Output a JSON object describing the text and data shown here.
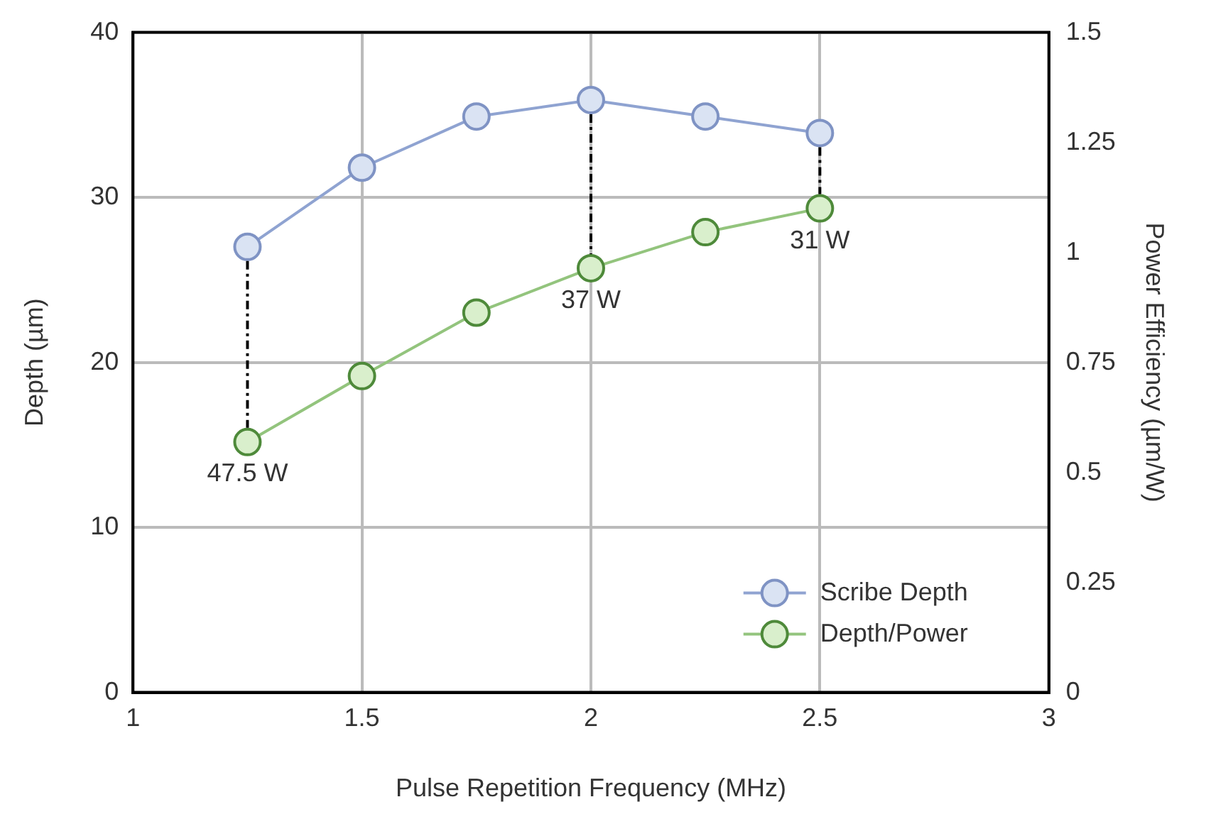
{
  "chart_data": {
    "type": "line",
    "xlabel": "Pulse Repetition Frequency (MHz)",
    "ylabel": "Depth (µm)",
    "y2label": "Power Efficiency (µm/W)",
    "xlim": [
      1,
      3
    ],
    "xticks": [
      1,
      1.5,
      2,
      2.5,
      3
    ],
    "ylim": [
      0,
      40
    ],
    "yticks": [
      0,
      10,
      20,
      30,
      40
    ],
    "y2lim": [
      0,
      1.5
    ],
    "y2ticks": [
      0,
      0.25,
      0.5,
      0.75,
      1,
      1.25,
      1.5
    ],
    "grid": true,
    "legend": "bottom right",
    "marker": "circle",
    "line_style": "solid",
    "series": [
      {
        "name": "Scribe Depth",
        "color": "#8fa3d1",
        "x": [
          1.25,
          1.5,
          1.75,
          2,
          2.25,
          2.5
        ],
        "values": [
          27,
          31.8,
          34.9,
          35.9,
          34.9,
          33.9
        ]
      },
      {
        "name": "Depth/Power",
        "color": "#93c47d",
        "axis": "y2",
        "x": [
          1.25,
          1.5,
          1.75,
          2,
          2.25,
          2.5
        ],
        "values": [
          0.569,
          0.719,
          0.863,
          0.964,
          1.046,
          1.1
        ]
      }
    ],
    "annotations": [
      {
        "text": "47.5 W",
        "x": 1.25,
        "y": 15.2
      },
      {
        "text": "37 W",
        "x": 2,
        "y": 25.7
      },
      {
        "text": "31 W",
        "x": 2.5,
        "y": 29.3
      }
    ]
  }
}
